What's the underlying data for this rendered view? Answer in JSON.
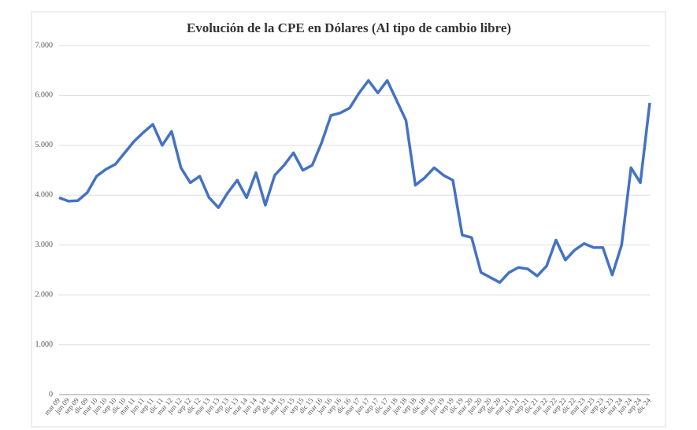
{
  "chart_data": {
    "type": "line",
    "title": "Evolución de la CPE en Dólares (Al tipo de cambio libre)",
    "categories": [
      "mar 09",
      "jun 09",
      "sep 09",
      "dic 09",
      "mar 10",
      "jun 10",
      "sep 10",
      "dic 10",
      "mar 11",
      "jun 11",
      "sep 11",
      "dic 11",
      "mar 12",
      "jun 12",
      "sep 12",
      "dic 12",
      "mar 13",
      "jun 13",
      "sep 13",
      "dic 13",
      "mar 14",
      "jun 14",
      "sep 14",
      "dic 14",
      "mar 15",
      "jun 15",
      "sep 15",
      "dic 15",
      "mar 16",
      "jun 16",
      "sep 16",
      "dic 16",
      "mar 17",
      "jun 17",
      "sep 17",
      "dic 17",
      "mar 18",
      "jun 18",
      "sep 18",
      "dic 18",
      "mar 19",
      "jun 19",
      "sep 19",
      "dic 19",
      "mar 20",
      "jun 20",
      "sep 20",
      "dic 20",
      "mar 21",
      "jun 21",
      "sep 21",
      "dic 21",
      "mar 22",
      "jun 22",
      "sep 22",
      "dic 22",
      "mar 23",
      "jun 23",
      "sep 23",
      "dic 23",
      "mar 24",
      "jun 24",
      "sep 24",
      "dic 24"
    ],
    "series": [
      {
        "color": "#4472c4",
        "values": [
          3950,
          3880,
          3890,
          4050,
          4380,
          4520,
          4620,
          4850,
          5080,
          5260,
          5420,
          5000,
          5280,
          4550,
          4250,
          4380,
          3950,
          3750,
          4050,
          4300,
          3950,
          4450,
          3800,
          4400,
          4600,
          4850,
          4500,
          4600,
          5050,
          5600,
          5650,
          5750,
          6050,
          6300,
          6050,
          6300,
          5900,
          5500,
          4200,
          4350,
          4550,
          4400,
          4300,
          3200,
          3150,
          2450,
          2350,
          2250,
          2450,
          2550,
          2520,
          2380,
          2580,
          3100,
          2700,
          2900,
          3030,
          2950,
          2950,
          2400,
          3000,
          4550,
          4250,
          5850
        ]
      }
    ],
    "ylim": [
      0,
      7000
    ],
    "yticks": [
      0,
      {
        "value": 1000,
        "label": "1.000"
      },
      {
        "value": 2000,
        "label": "2.000"
      },
      {
        "value": 3000,
        "label": "3.000"
      },
      {
        "value": 4000,
        "label": "4.000"
      },
      {
        "value": 5000,
        "label": "5.000"
      },
      {
        "value": 6000,
        "label": "6.000"
      },
      {
        "value": 7000,
        "label": "7.000"
      }
    ],
    "grid": true
  }
}
